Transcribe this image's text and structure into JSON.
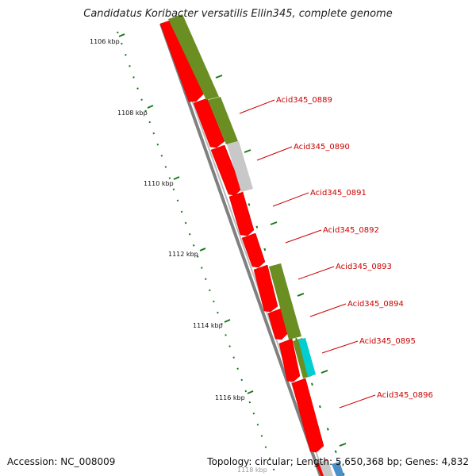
{
  "header": {
    "title": "Candidatus Koribacter versatilis Ellin345, complete genome"
  },
  "footer": {
    "accession_label": "Accession:",
    "accession_value": "NC_008009",
    "topology_label": "Topology:",
    "topology_value": "circular;",
    "length_label": "Length:",
    "length_value": "5,650,368 bp;",
    "genes_label": "Genes:",
    "genes_value": "4,832"
  },
  "ruler_labels": [
    "1106 kbp",
    "1108 kbp",
    "1110 kbp",
    "1112 kbp",
    "1114 kbp",
    "1116 kbp",
    "1118 kbp"
  ],
  "gene_labels": [
    "Acid345_0889",
    "Acid345_0890",
    "Acid345_0891",
    "Acid345_0892",
    "Acid345_0893",
    "Acid345_0894",
    "Acid345_0895",
    "Acid345_0896"
  ],
  "colors": {
    "gene_red": "#ff0000",
    "cog_olive": "#6b8e23",
    "cog_grey": "#c8c8c8",
    "cog_cyan": "#00ced1",
    "backbone": "#808080",
    "tick_green": "#1a7a1a",
    "label_red": "#cc0000"
  }
}
